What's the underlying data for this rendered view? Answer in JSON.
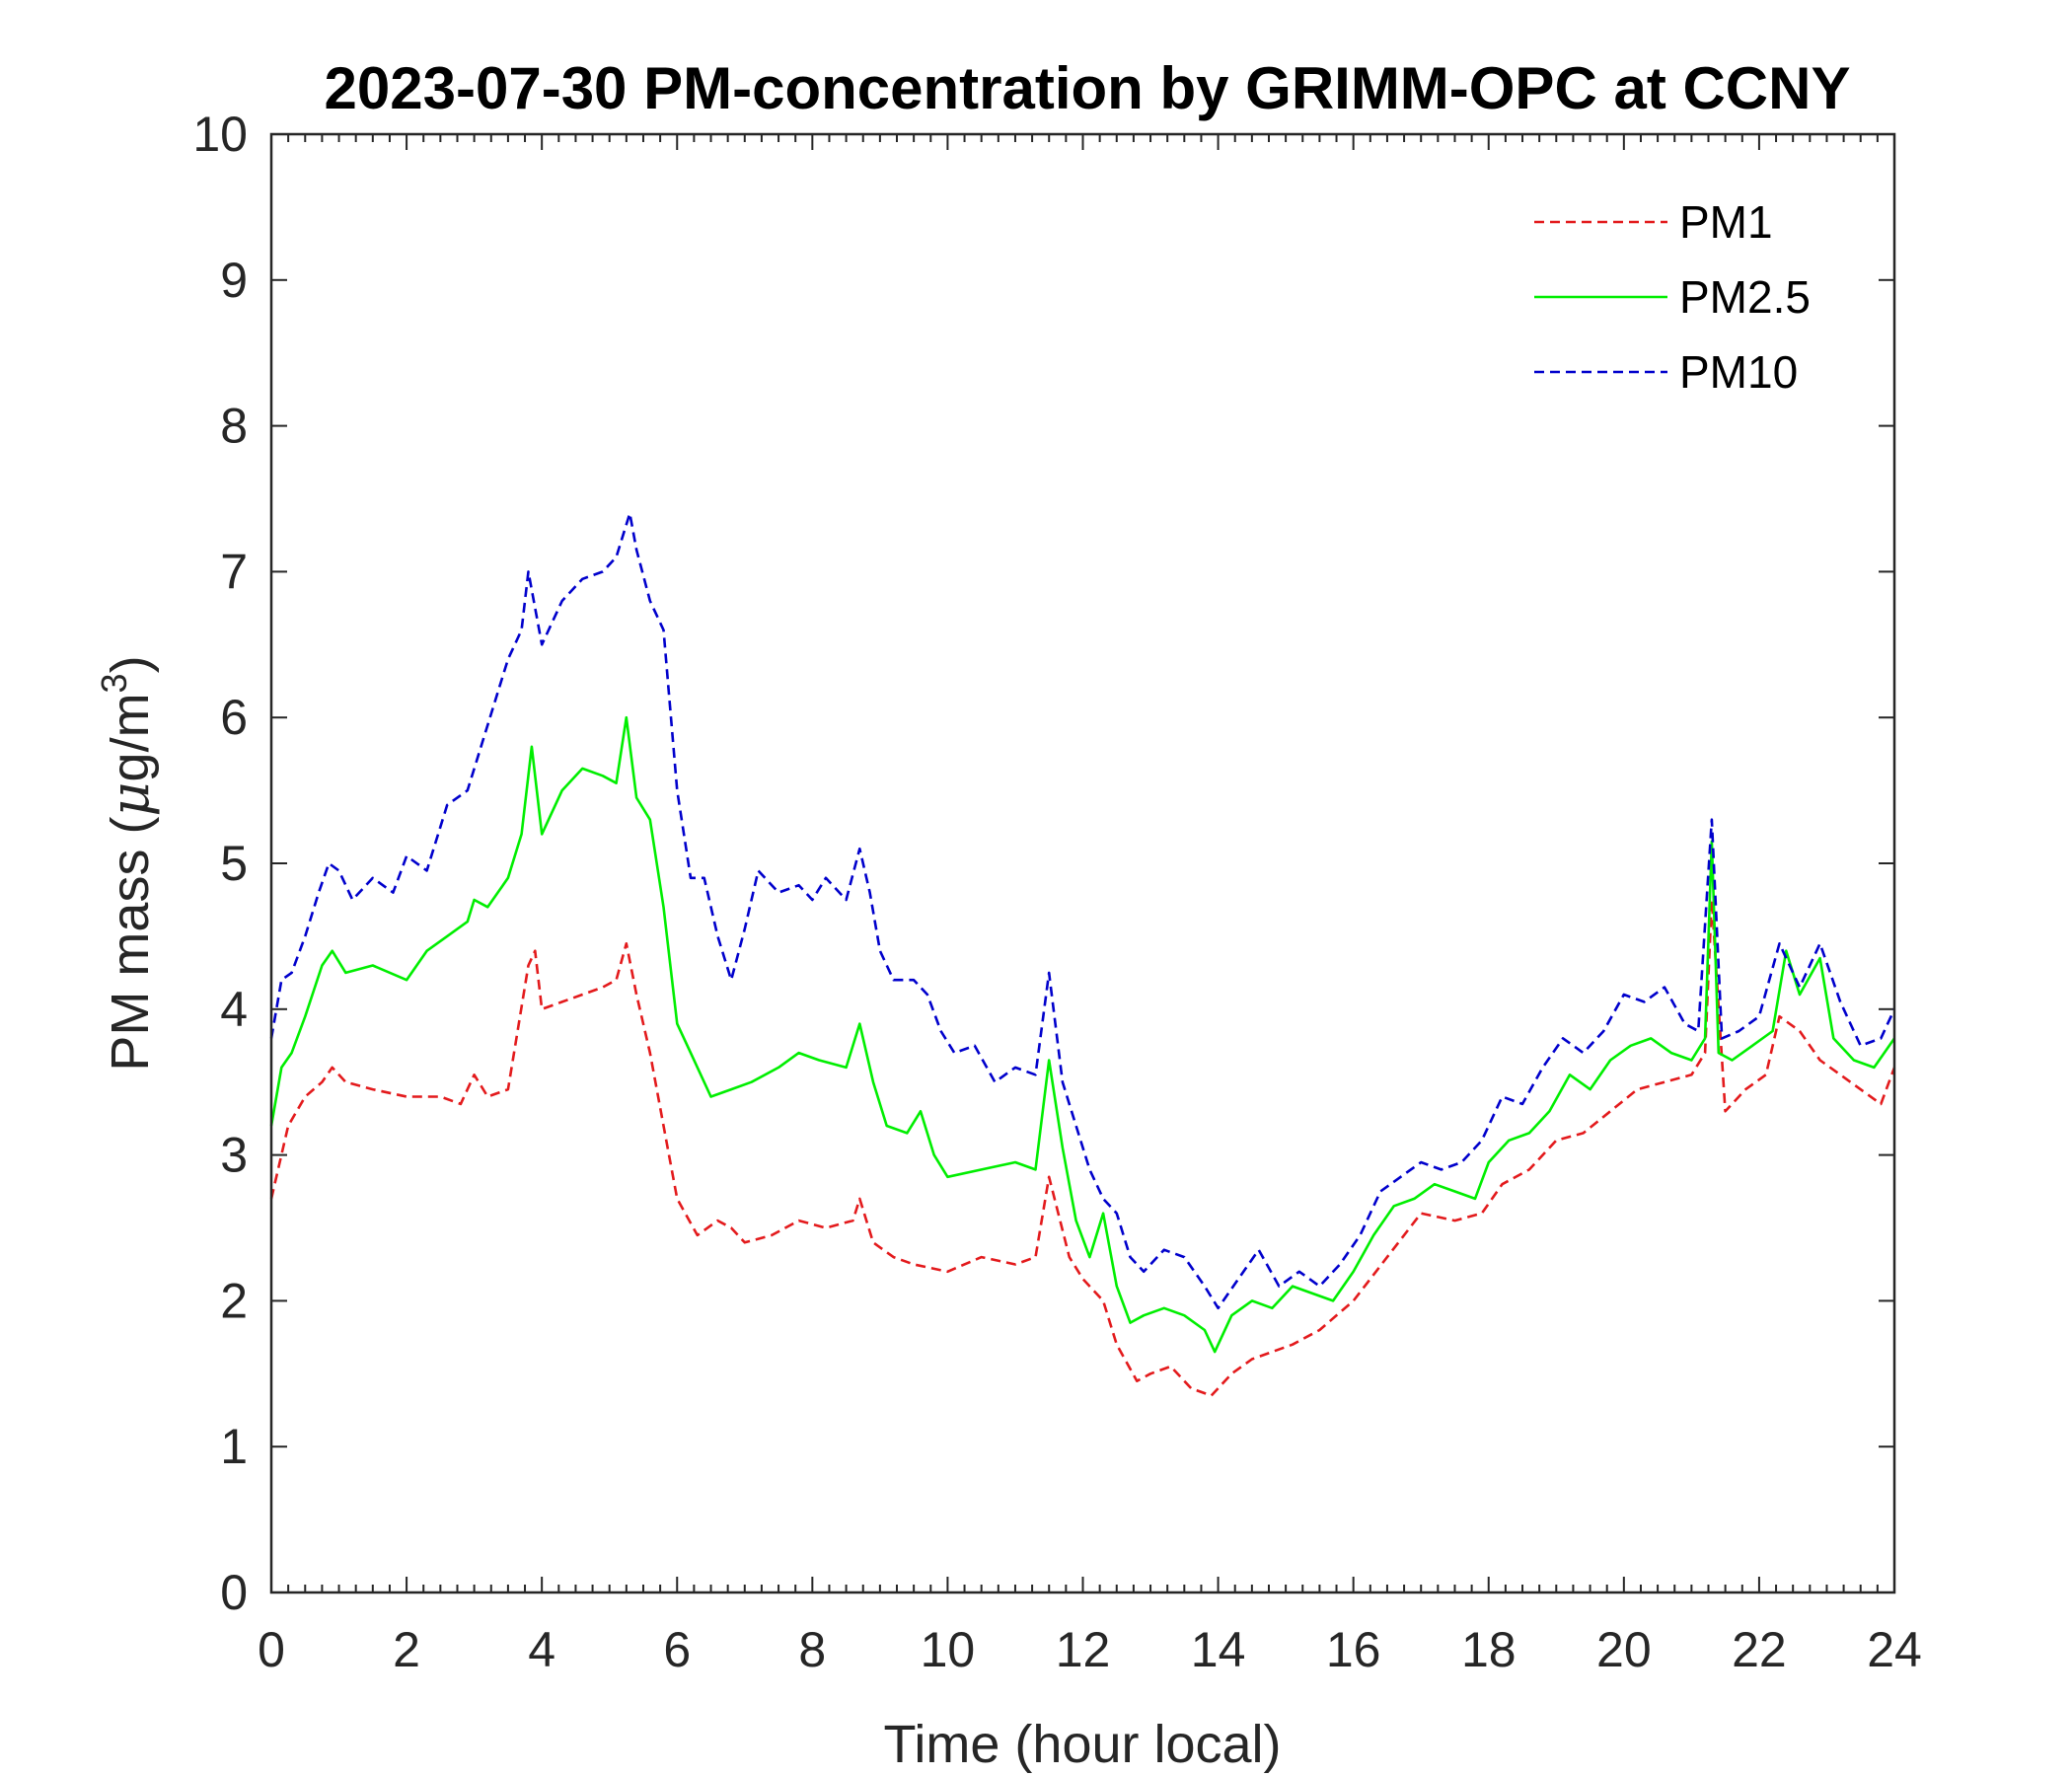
{
  "chart_data": {
    "type": "line",
    "title": "2023-07-30 PM-concentration by GRIMM-OPC at CCNY",
    "xlabel": "Time (hour local)",
    "ylabel_prefix": "PM mass (",
    "ylabel_mu": "μ",
    "ylabel_mid": "g/m",
    "ylabel_sup": "3",
    "ylabel_suffix": ")",
    "xlim": [
      0,
      24
    ],
    "ylim": [
      0,
      10
    ],
    "xticks": [
      0,
      2,
      4,
      6,
      8,
      10,
      12,
      14,
      16,
      18,
      20,
      22,
      24
    ],
    "yticks": [
      0,
      1,
      2,
      3,
      4,
      5,
      6,
      7,
      8,
      9,
      10
    ],
    "grid": false,
    "legend_placement": "top-right",
    "series": [
      {
        "name": "PM1",
        "color": "#e31a1c",
        "style": "dashed",
        "x": [
          0,
          0.25,
          0.5,
          0.75,
          0.9,
          1.1,
          1.5,
          2.0,
          2.5,
          2.8,
          3.0,
          3.2,
          3.5,
          3.8,
          3.9,
          4.0,
          4.3,
          4.6,
          4.9,
          5.1,
          5.25,
          5.4,
          5.6,
          5.8,
          6.0,
          6.3,
          6.6,
          6.8,
          7.0,
          7.4,
          7.8,
          8.2,
          8.6,
          8.7,
          8.9,
          9.2,
          9.5,
          10.0,
          10.5,
          11.0,
          11.3,
          11.5,
          11.8,
          12.0,
          12.3,
          12.5,
          12.8,
          13.0,
          13.3,
          13.6,
          13.9,
          14.2,
          14.5,
          14.8,
          15.1,
          15.5,
          16.0,
          16.5,
          17.0,
          17.5,
          17.9,
          18.2,
          18.6,
          19.0,
          19.4,
          19.8,
          20.2,
          20.6,
          21.0,
          21.2,
          21.3,
          21.5,
          21.8,
          22.1,
          22.3,
          22.6,
          22.9,
          23.2,
          23.5,
          23.8,
          24.0
        ],
        "y": [
          2.7,
          3.2,
          3.4,
          3.5,
          3.6,
          3.5,
          3.45,
          3.4,
          3.4,
          3.35,
          3.55,
          3.4,
          3.45,
          4.3,
          4.4,
          4.0,
          4.05,
          4.1,
          4.15,
          4.2,
          4.45,
          4.1,
          3.7,
          3.2,
          2.7,
          2.45,
          2.55,
          2.5,
          2.4,
          2.45,
          2.55,
          2.5,
          2.55,
          2.7,
          2.4,
          2.3,
          2.25,
          2.2,
          2.3,
          2.25,
          2.3,
          2.85,
          2.3,
          2.15,
          2.0,
          1.7,
          1.45,
          1.5,
          1.55,
          1.4,
          1.35,
          1.5,
          1.6,
          1.65,
          1.7,
          1.8,
          2.0,
          2.3,
          2.6,
          2.55,
          2.6,
          2.8,
          2.9,
          3.1,
          3.15,
          3.3,
          3.45,
          3.5,
          3.55,
          3.7,
          4.75,
          3.3,
          3.45,
          3.55,
          3.95,
          3.85,
          3.65,
          3.55,
          3.45,
          3.35,
          3.6
        ]
      },
      {
        "name": "PM2.5",
        "color": "#00ee00",
        "style": "solid",
        "x": [
          0,
          0.15,
          0.3,
          0.5,
          0.75,
          0.9,
          1.1,
          1.5,
          2.0,
          2.3,
          2.6,
          2.9,
          3.0,
          3.2,
          3.5,
          3.7,
          3.85,
          4.0,
          4.3,
          4.6,
          4.9,
          5.1,
          5.25,
          5.4,
          5.6,
          5.8,
          6.0,
          6.2,
          6.5,
          6.8,
          7.1,
          7.5,
          7.8,
          8.1,
          8.5,
          8.7,
          8.9,
          9.1,
          9.4,
          9.6,
          9.8,
          10.0,
          10.5,
          11.0,
          11.3,
          11.5,
          11.7,
          11.9,
          12.1,
          12.3,
          12.5,
          12.7,
          12.9,
          13.2,
          13.5,
          13.8,
          13.95,
          14.2,
          14.5,
          14.8,
          15.1,
          15.4,
          15.7,
          16.0,
          16.3,
          16.6,
          16.9,
          17.2,
          17.5,
          17.8,
          18.0,
          18.3,
          18.6,
          18.9,
          19.2,
          19.5,
          19.8,
          20.1,
          20.4,
          20.7,
          21.0,
          21.2,
          21.3,
          21.4,
          21.6,
          21.9,
          22.2,
          22.4,
          22.6,
          22.9,
          23.1,
          23.4,
          23.7,
          24.0
        ],
        "y": [
          3.2,
          3.6,
          3.7,
          3.95,
          4.3,
          4.4,
          4.25,
          4.3,
          4.2,
          4.4,
          4.5,
          4.6,
          4.75,
          4.7,
          4.9,
          5.2,
          5.8,
          5.2,
          5.5,
          5.65,
          5.6,
          5.55,
          6.0,
          5.45,
          5.3,
          4.7,
          3.9,
          3.7,
          3.4,
          3.45,
          3.5,
          3.6,
          3.7,
          3.65,
          3.6,
          3.9,
          3.5,
          3.2,
          3.15,
          3.3,
          3.0,
          2.85,
          2.9,
          2.95,
          2.9,
          3.65,
          3.05,
          2.55,
          2.3,
          2.6,
          2.1,
          1.85,
          1.9,
          1.95,
          1.9,
          1.8,
          1.65,
          1.9,
          2.0,
          1.95,
          2.1,
          2.05,
          2.0,
          2.2,
          2.45,
          2.65,
          2.7,
          2.8,
          2.75,
          2.7,
          2.95,
          3.1,
          3.15,
          3.3,
          3.55,
          3.45,
          3.65,
          3.75,
          3.8,
          3.7,
          3.65,
          3.8,
          5.15,
          3.7,
          3.65,
          3.75,
          3.85,
          4.4,
          4.1,
          4.35,
          3.8,
          3.65,
          3.6,
          3.8
        ]
      },
      {
        "name": "PM10",
        "color": "#0000cc",
        "style": "dashed",
        "x": [
          0,
          0.15,
          0.3,
          0.5,
          0.7,
          0.85,
          1.0,
          1.2,
          1.5,
          1.8,
          2.0,
          2.3,
          2.6,
          2.9,
          3.1,
          3.3,
          3.5,
          3.7,
          3.8,
          4.0,
          4.3,
          4.6,
          4.9,
          5.1,
          5.3,
          5.4,
          5.6,
          5.8,
          6.0,
          6.2,
          6.4,
          6.6,
          6.8,
          7.0,
          7.2,
          7.5,
          7.8,
          8.0,
          8.2,
          8.5,
          8.7,
          8.85,
          9.0,
          9.2,
          9.5,
          9.7,
          9.9,
          10.1,
          10.4,
          10.7,
          11.0,
          11.3,
          11.5,
          11.7,
          11.9,
          12.1,
          12.3,
          12.5,
          12.7,
          12.9,
          13.2,
          13.5,
          13.8,
          14.0,
          14.3,
          14.6,
          14.9,
          15.2,
          15.5,
          15.8,
          16.1,
          16.4,
          16.7,
          17.0,
          17.3,
          17.6,
          17.9,
          18.2,
          18.5,
          18.8,
          19.1,
          19.4,
          19.7,
          20.0,
          20.3,
          20.6,
          20.9,
          21.1,
          21.3,
          21.45,
          21.7,
          22.0,
          22.3,
          22.6,
          22.9,
          23.2,
          23.5,
          23.8,
          24.0
        ],
        "y": [
          3.8,
          4.2,
          4.25,
          4.5,
          4.8,
          5.0,
          4.95,
          4.75,
          4.9,
          4.8,
          5.05,
          4.95,
          5.4,
          5.5,
          5.8,
          6.1,
          6.4,
          6.6,
          7.0,
          6.5,
          6.8,
          6.95,
          7.0,
          7.1,
          7.4,
          7.15,
          6.8,
          6.6,
          5.5,
          4.9,
          4.9,
          4.5,
          4.2,
          4.55,
          4.95,
          4.8,
          4.85,
          4.75,
          4.9,
          4.75,
          5.1,
          4.8,
          4.4,
          4.2,
          4.2,
          4.1,
          3.85,
          3.7,
          3.75,
          3.5,
          3.6,
          3.55,
          4.25,
          3.5,
          3.2,
          2.9,
          2.7,
          2.6,
          2.3,
          2.2,
          2.35,
          2.3,
          2.1,
          1.95,
          2.15,
          2.35,
          2.1,
          2.2,
          2.1,
          2.25,
          2.45,
          2.75,
          2.85,
          2.95,
          2.9,
          2.95,
          3.1,
          3.4,
          3.35,
          3.6,
          3.8,
          3.7,
          3.85,
          4.1,
          4.05,
          4.15,
          3.9,
          3.85,
          5.3,
          3.8,
          3.85,
          3.95,
          4.45,
          4.15,
          4.45,
          4.05,
          3.75,
          3.8,
          4.0
        ]
      }
    ]
  }
}
